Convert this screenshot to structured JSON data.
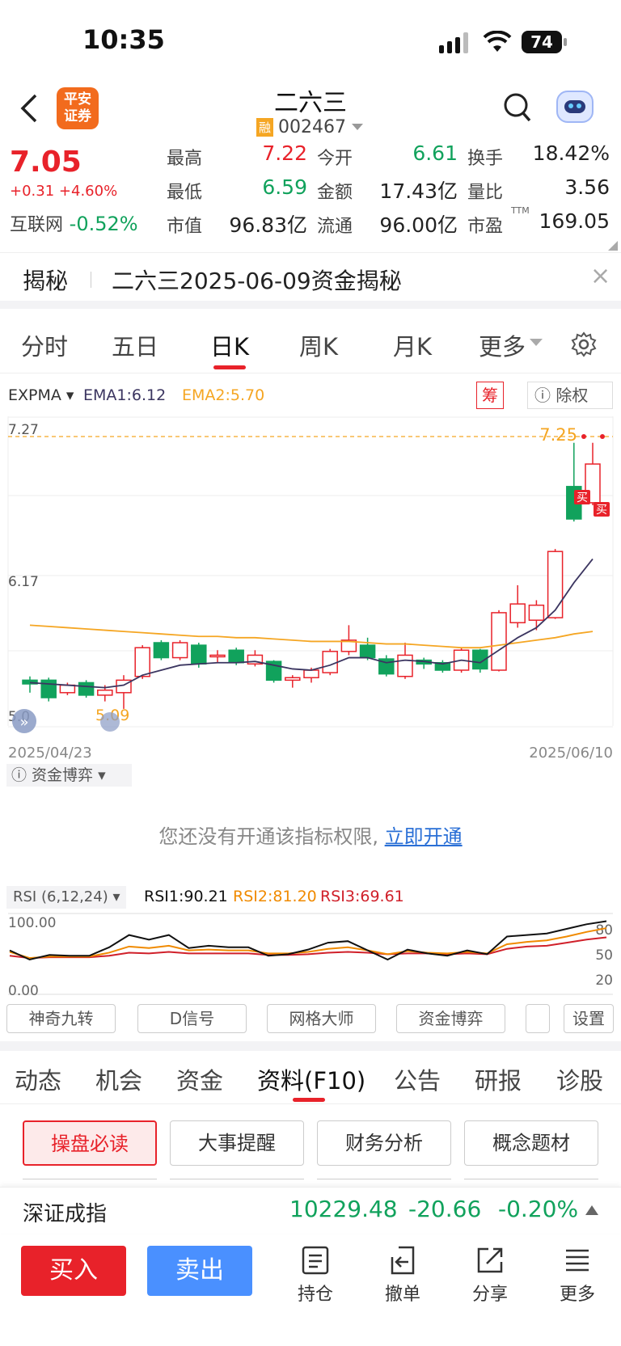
{
  "status": {
    "time": "10:35",
    "battery": "74"
  },
  "nav": {
    "title": "二六三",
    "rong": "融",
    "code": "002467",
    "logo": "平安\n证券"
  },
  "quote": {
    "price": "7.05",
    "change": "+0.31",
    "pct": "+4.60%",
    "sector_name": "互联网",
    "sector_pct": "-0.52%",
    "rows": [
      [
        {
          "l": "最高",
          "v": "7.22",
          "c": "red"
        },
        {
          "l": "今开",
          "v": "6.61",
          "c": "green"
        },
        {
          "l": "换手",
          "v": "18.42%",
          "c": "dark"
        }
      ],
      [
        {
          "l": "最低",
          "v": "6.59",
          "c": "green"
        },
        {
          "l": "金额",
          "v": "17.43亿",
          "c": "dark"
        },
        {
          "l": "量比",
          "v": "3.56",
          "c": "dark"
        }
      ],
      [
        {
          "l": "市值",
          "v": "96.83亿",
          "c": "dark"
        },
        {
          "l": "流通",
          "v": "96.00亿",
          "c": "dark"
        },
        {
          "l": "市盈",
          "v": "169.05",
          "c": "dark",
          "sup": "TTM"
        }
      ]
    ]
  },
  "reveal": {
    "tag": "揭秘",
    "text": "二六三2025-06-09资金揭秘",
    "close": "×"
  },
  "period_tabs": [
    "分时",
    "五日",
    "日K",
    "周K",
    "月K",
    "更多"
  ],
  "active_period": "日K",
  "indicator": {
    "name": "EXPMA",
    "ema1": "EMA1:6.12",
    "ema2": "EMA2:5.70",
    "chou": "筹",
    "chuquan": "除权"
  },
  "kline": {
    "y_high": "7.27",
    "y_mid": "6.17",
    "y_low": "5.0",
    "low_marker": "5.09",
    "hi_marker": "7.25",
    "start_date": "2025/04/23",
    "end_date": "2025/06/10",
    "buy": "买"
  },
  "capital": {
    "label": "资金博弈",
    "msg": "您还没有开通该指标权限,",
    "link": "立即开通"
  },
  "rsi": {
    "label": "RSI (6,12,24)",
    "rsi1": "RSI1:90.21",
    "rsi2": "RSI2:81.20",
    "rsi3": "RSI3:69.61",
    "top": "100.00",
    "bottom": "0.00",
    "r80": "80",
    "r50": "50",
    "r20": "20"
  },
  "tools": [
    "神奇九转",
    "D信号",
    "网格大师",
    "资金博弈",
    "设置"
  ],
  "info_tabs": [
    "动态",
    "机会",
    "资金",
    "资料(F10)",
    "公告",
    "研报",
    "诊股"
  ],
  "active_info": "资料(F10)",
  "f10_buttons": [
    "操盘必读",
    "大事提醒",
    "财务分析",
    "概念题材"
  ],
  "index": {
    "name": "深证成指",
    "value": "10229.48",
    "change": "-20.66",
    "pct": "-0.20%"
  },
  "actions": {
    "buy": "买入",
    "sell": "卖出",
    "hold": "持仓",
    "cancel": "撤单",
    "share": "分享",
    "more": "更多"
  },
  "colors": {
    "up": "#e8222a",
    "down": "#11a25c",
    "ema1": "#3b3560",
    "ema2": "#f5a623",
    "blue_btn": "#4a90ff"
  }
}
